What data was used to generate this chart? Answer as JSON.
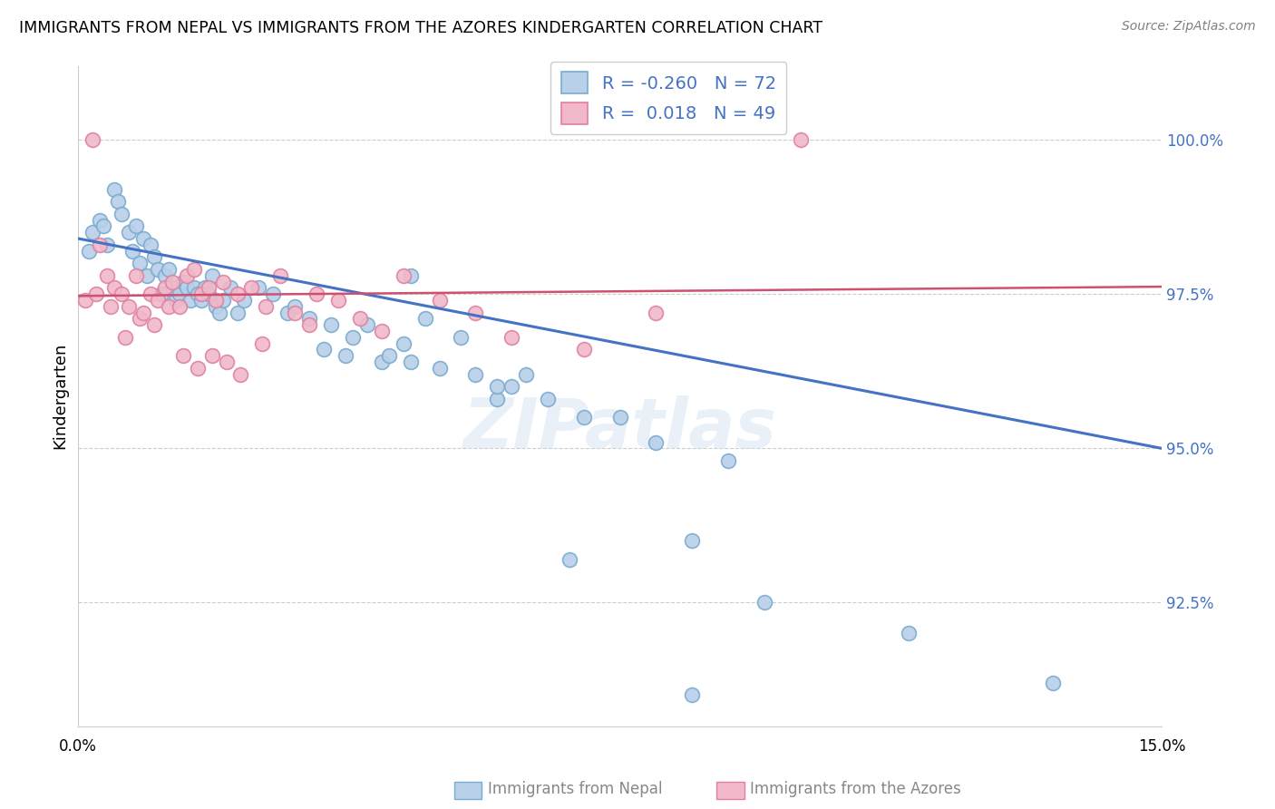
{
  "title": "IMMIGRANTS FROM NEPAL VS IMMIGRANTS FROM THE AZORES KINDERGARTEN CORRELATION CHART",
  "source": "Source: ZipAtlas.com",
  "ylabel": "Kindergarten",
  "xmin": 0.0,
  "xmax": 15.0,
  "ymin": 90.5,
  "ymax": 101.2,
  "nepal_color": "#b8d0e8",
  "nepal_edge": "#7aaad0",
  "azores_color": "#f0b8c8",
  "azores_edge": "#e080a0",
  "nepal_line_color": "#4472C4",
  "azores_line_color": "#D05070",
  "nepal_R": -0.26,
  "nepal_N": 72,
  "azores_R": 0.018,
  "azores_N": 49,
  "watermark": "ZIPatlas",
  "nepal_x": [
    0.15,
    0.2,
    0.3,
    0.35,
    0.4,
    0.5,
    0.55,
    0.6,
    0.7,
    0.75,
    0.8,
    0.85,
    0.9,
    0.95,
    1.0,
    1.05,
    1.1,
    1.15,
    1.2,
    1.25,
    1.3,
    1.35,
    1.4,
    1.45,
    1.5,
    1.55,
    1.6,
    1.65,
    1.7,
    1.75,
    1.8,
    1.85,
    1.9,
    1.95,
    2.0,
    2.1,
    2.2,
    2.3,
    2.5,
    2.7,
    2.9,
    3.0,
    3.2,
    3.5,
    3.7,
    3.8,
    4.0,
    4.2,
    4.3,
    4.5,
    4.6,
    4.8,
    5.0,
    5.3,
    5.5,
    5.8,
    6.0,
    6.2,
    6.5,
    7.0,
    7.5,
    8.0,
    8.5,
    9.0,
    9.5,
    11.5,
    3.4,
    4.6,
    5.8,
    6.8,
    8.5,
    13.5
  ],
  "nepal_y": [
    98.2,
    98.5,
    98.7,
    98.6,
    98.3,
    99.2,
    99.0,
    98.8,
    98.5,
    98.2,
    98.6,
    98.0,
    98.4,
    97.8,
    98.3,
    98.1,
    97.9,
    97.5,
    97.8,
    97.9,
    97.6,
    97.4,
    97.5,
    97.7,
    97.6,
    97.4,
    97.6,
    97.5,
    97.4,
    97.6,
    97.5,
    97.8,
    97.3,
    97.2,
    97.4,
    97.6,
    97.2,
    97.4,
    97.6,
    97.5,
    97.2,
    97.3,
    97.1,
    97.0,
    96.5,
    96.8,
    97.0,
    96.4,
    96.5,
    96.7,
    97.8,
    97.1,
    96.3,
    96.8,
    96.2,
    95.8,
    96.0,
    96.2,
    95.8,
    95.5,
    95.5,
    95.1,
    93.5,
    94.8,
    92.5,
    92.0,
    96.6,
    96.4,
    96.0,
    93.2,
    91.0,
    91.2
  ],
  "azores_x": [
    0.1,
    0.2,
    0.25,
    0.3,
    0.4,
    0.45,
    0.5,
    0.6,
    0.65,
    0.7,
    0.8,
    0.85,
    0.9,
    1.0,
    1.05,
    1.1,
    1.2,
    1.25,
    1.3,
    1.4,
    1.45,
    1.5,
    1.6,
    1.65,
    1.7,
    1.8,
    1.85,
    1.9,
    2.0,
    2.05,
    2.2,
    2.25,
    2.4,
    2.55,
    2.6,
    2.8,
    3.0,
    3.2,
    3.3,
    3.6,
    3.9,
    4.2,
    4.5,
    5.0,
    5.5,
    6.0,
    7.0,
    8.0,
    10.0
  ],
  "azores_y": [
    97.4,
    100.0,
    97.5,
    98.3,
    97.8,
    97.3,
    97.6,
    97.5,
    96.8,
    97.3,
    97.8,
    97.1,
    97.2,
    97.5,
    97.0,
    97.4,
    97.6,
    97.3,
    97.7,
    97.3,
    96.5,
    97.8,
    97.9,
    96.3,
    97.5,
    97.6,
    96.5,
    97.4,
    97.7,
    96.4,
    97.5,
    96.2,
    97.6,
    96.7,
    97.3,
    97.8,
    97.2,
    97.0,
    97.5,
    97.4,
    97.1,
    96.9,
    97.8,
    97.4,
    97.2,
    96.8,
    96.6,
    97.2,
    100.0
  ],
  "ytick_values": [
    92.5,
    95.0,
    97.5,
    100.0
  ],
  "ytick_labels": [
    "92.5%",
    "95.0%",
    "97.5%",
    "100.0%"
  ],
  "nepal_line_y0": 98.4,
  "nepal_line_y1": 95.0,
  "azores_line_y0": 97.47,
  "azores_line_y1": 97.62
}
